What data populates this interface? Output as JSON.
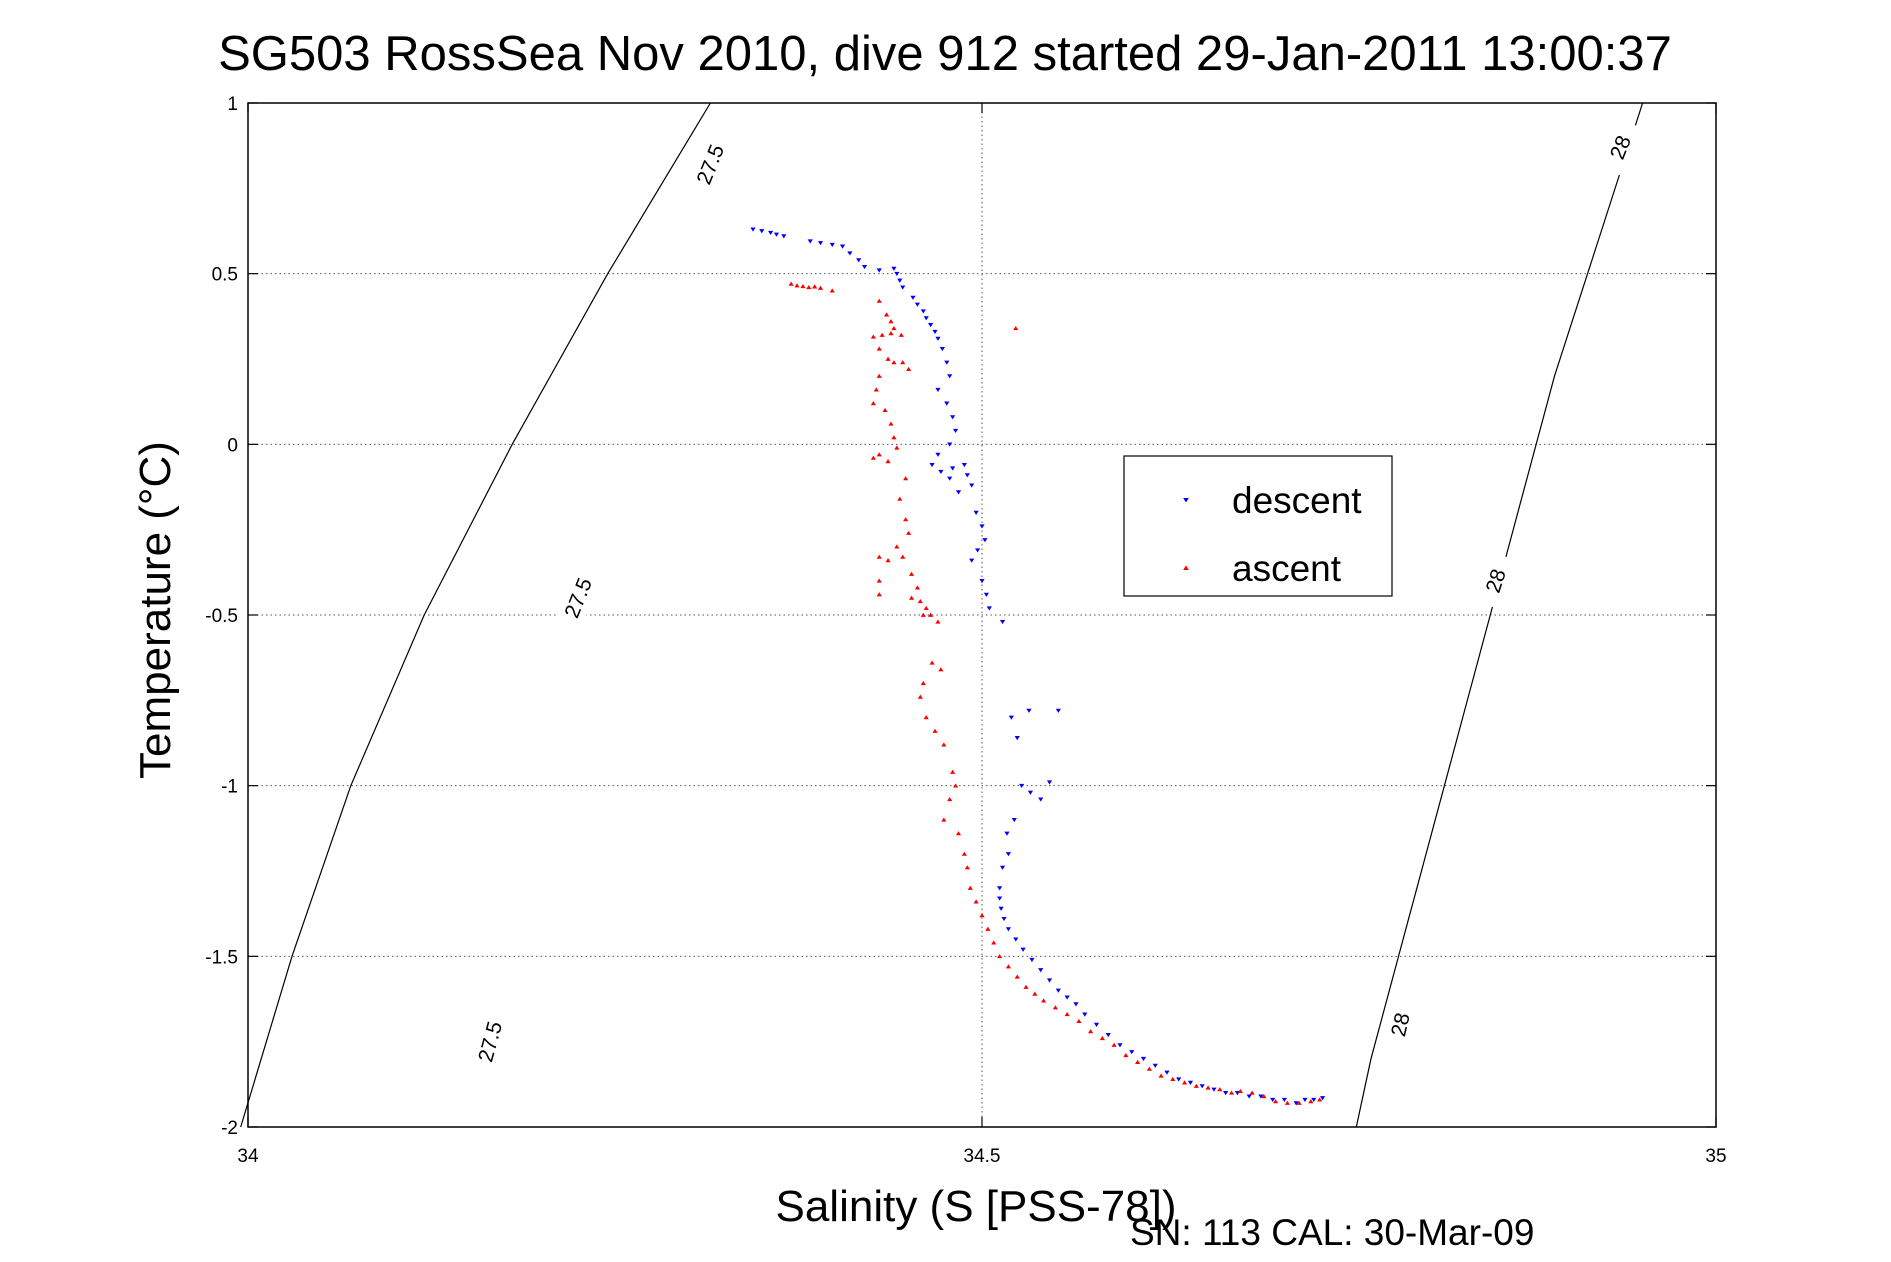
{
  "chart_data": {
    "type": "scatter",
    "title": "SG503 RossSea Nov 2010, dive 912 started 29-Jan-2011 13:00:37",
    "xlabel": "Salinity (S [PSS-78])",
    "ylabel": "Temperature (°C)",
    "footer": "SN: 113  CAL: 30-Mar-09",
    "xlim": [
      34,
      35
    ],
    "ylim": [
      -2,
      1
    ],
    "grid": true,
    "legend_position": "right-center",
    "x_ticks": [
      "34",
      "34.5",
      "35"
    ],
    "y_ticks": [
      "1",
      "0.5",
      "0",
      "-0.5",
      "-1",
      "-1.5",
      "-2"
    ],
    "x_tick_values": [
      34,
      34.5,
      35
    ],
    "y_tick_values": [
      1,
      0.5,
      0,
      -0.5,
      -1,
      -1.5,
      -2
    ],
    "contours": [
      {
        "label": "27.5",
        "points": [
          [
            34.315,
            1
          ],
          [
            34.245,
            0.5
          ],
          [
            34.18,
            0
          ],
          [
            34.12,
            -0.5
          ],
          [
            34.07,
            -1
          ],
          [
            34.03,
            -1.5
          ],
          [
            33.995,
            -2
          ]
        ],
        "label_positions": [
          [
            34.315,
            0.82,
            -68
          ],
          [
            34.225,
            -0.45,
            -68
          ],
          [
            34.165,
            -1.75,
            -75
          ]
        ]
      },
      {
        "label": "28",
        "points": [
          [
            34.95,
            1
          ],
          [
            34.92,
            0.6
          ],
          [
            34.89,
            0.2
          ],
          [
            34.865,
            -0.2
          ],
          [
            34.84,
            -0.6
          ],
          [
            34.815,
            -1
          ],
          [
            34.79,
            -1.4
          ],
          [
            34.765,
            -1.8
          ],
          [
            34.755,
            -2
          ]
        ],
        "label_positions": [
          [
            34.935,
            0.87,
            -68
          ],
          [
            34.85,
            -0.4,
            -72
          ],
          [
            34.785,
            -1.7,
            -77
          ]
        ]
      }
    ],
    "series": [
      {
        "name": "descent",
        "color": "#0000ff",
        "marker": "triangle-down",
        "points": [
          [
            34.344,
            0.63
          ],
          [
            34.35,
            0.625
          ],
          [
            34.356,
            0.62
          ],
          [
            34.36,
            0.615
          ],
          [
            34.365,
            0.61
          ],
          [
            34.383,
            0.595
          ],
          [
            34.39,
            0.59
          ],
          [
            34.398,
            0.585
          ],
          [
            34.405,
            0.58
          ],
          [
            34.41,
            0.56
          ],
          [
            34.416,
            0.54
          ],
          [
            34.42,
            0.52
          ],
          [
            34.43,
            0.51
          ],
          [
            34.44,
            0.515
          ],
          [
            34.442,
            0.5
          ],
          [
            34.444,
            0.48
          ],
          [
            34.446,
            0.46
          ],
          [
            34.453,
            0.43
          ],
          [
            34.456,
            0.41
          ],
          [
            34.46,
            0.39
          ],
          [
            34.462,
            0.37
          ],
          [
            34.465,
            0.35
          ],
          [
            34.468,
            0.33
          ],
          [
            34.47,
            0.31
          ],
          [
            34.473,
            0.28
          ],
          [
            34.476,
            0.24
          ],
          [
            34.478,
            0.2
          ],
          [
            34.47,
            0.16
          ],
          [
            34.476,
            0.12
          ],
          [
            34.48,
            0.08
          ],
          [
            34.482,
            0.04
          ],
          [
            34.478,
            0.0
          ],
          [
            34.47,
            -0.03
          ],
          [
            34.466,
            -0.06
          ],
          [
            34.472,
            -0.08
          ],
          [
            34.48,
            -0.07
          ],
          [
            34.488,
            -0.06
          ],
          [
            34.49,
            -0.09
          ],
          [
            34.493,
            -0.12
          ],
          [
            34.484,
            -0.14
          ],
          [
            34.478,
            -0.1
          ],
          [
            34.496,
            -0.2
          ],
          [
            34.5,
            -0.24
          ],
          [
            34.502,
            -0.28
          ],
          [
            34.497,
            -0.31
          ],
          [
            34.493,
            -0.34
          ],
          [
            34.5,
            -0.4
          ],
          [
            34.503,
            -0.44
          ],
          [
            34.505,
            -0.48
          ],
          [
            34.514,
            -0.52
          ],
          [
            34.52,
            -0.8
          ],
          [
            34.524,
            -0.86
          ],
          [
            34.532,
            -0.78
          ],
          [
            34.552,
            -0.78
          ],
          [
            34.527,
            -1.0
          ],
          [
            34.533,
            -1.02
          ],
          [
            34.54,
            -1.04
          ],
          [
            34.546,
            -0.99
          ],
          [
            34.522,
            -1.1
          ],
          [
            34.517,
            -1.14
          ],
          [
            34.518,
            -1.2
          ],
          [
            34.514,
            -1.24
          ],
          [
            34.512,
            -1.3
          ],
          [
            34.512,
            -1.33
          ],
          [
            34.513,
            -1.36
          ],
          [
            34.515,
            -1.39
          ],
          [
            34.518,
            -1.42
          ],
          [
            34.523,
            -1.45
          ],
          [
            34.528,
            -1.48
          ],
          [
            34.534,
            -1.51
          ],
          [
            34.54,
            -1.54
          ],
          [
            34.546,
            -1.57
          ],
          [
            34.552,
            -1.6
          ],
          [
            34.558,
            -1.62
          ],
          [
            34.564,
            -1.64
          ],
          [
            34.57,
            -1.67
          ],
          [
            34.578,
            -1.7
          ],
          [
            34.586,
            -1.73
          ],
          [
            34.594,
            -1.76
          ],
          [
            34.602,
            -1.78
          ],
          [
            34.61,
            -1.8
          ],
          [
            34.618,
            -1.82
          ],
          [
            34.626,
            -1.84
          ],
          [
            34.634,
            -1.86
          ],
          [
            34.642,
            -1.87
          ],
          [
            34.65,
            -1.88
          ],
          [
            34.658,
            -1.89
          ],
          [
            34.666,
            -1.9
          ],
          [
            34.674,
            -1.9
          ],
          [
            34.682,
            -1.91
          ],
          [
            34.69,
            -1.91
          ],
          [
            34.698,
            -1.92
          ],
          [
            34.706,
            -1.92
          ],
          [
            34.714,
            -1.93
          ],
          [
            34.72,
            -1.92
          ],
          [
            34.726,
            -1.92
          ],
          [
            34.732,
            -1.915
          ]
        ]
      },
      {
        "name": "ascent",
        "color": "#ff0000",
        "marker": "triangle-up",
        "points": [
          [
            34.37,
            0.47
          ],
          [
            34.374,
            0.465
          ],
          [
            34.378,
            0.463
          ],
          [
            34.382,
            0.46
          ],
          [
            34.386,
            0.462
          ],
          [
            34.39,
            0.458
          ],
          [
            34.398,
            0.45
          ],
          [
            34.43,
            0.42
          ],
          [
            34.435,
            0.38
          ],
          [
            34.438,
            0.36
          ],
          [
            34.44,
            0.34
          ],
          [
            34.445,
            0.32
          ],
          [
            34.438,
            0.325
          ],
          [
            34.432,
            0.32
          ],
          [
            34.426,
            0.315
          ],
          [
            34.43,
            0.28
          ],
          [
            34.436,
            0.25
          ],
          [
            34.44,
            0.24
          ],
          [
            34.446,
            0.24
          ],
          [
            34.45,
            0.22
          ],
          [
            34.43,
            0.2
          ],
          [
            34.428,
            0.16
          ],
          [
            34.426,
            0.12
          ],
          [
            34.434,
            0.1
          ],
          [
            34.438,
            0.06
          ],
          [
            34.44,
            0.02
          ],
          [
            34.442,
            -0.01
          ],
          [
            34.43,
            -0.03
          ],
          [
            34.426,
            -0.04
          ],
          [
            34.436,
            -0.05
          ],
          [
            34.448,
            -0.1
          ],
          [
            34.444,
            -0.16
          ],
          [
            34.448,
            -0.22
          ],
          [
            34.45,
            -0.26
          ],
          [
            34.442,
            -0.3
          ],
          [
            34.446,
            -0.33
          ],
          [
            34.436,
            -0.34
          ],
          [
            34.43,
            -0.33
          ],
          [
            34.43,
            -0.4
          ],
          [
            34.43,
            -0.44
          ],
          [
            34.452,
            -0.38
          ],
          [
            34.456,
            -0.42
          ],
          [
            34.452,
            -0.45
          ],
          [
            34.458,
            -0.46
          ],
          [
            34.462,
            -0.48
          ],
          [
            34.465,
            -0.5
          ],
          [
            34.47,
            -0.52
          ],
          [
            34.46,
            -0.5
          ],
          [
            34.466,
            -0.64
          ],
          [
            34.472,
            -0.66
          ],
          [
            34.46,
            -0.7
          ],
          [
            34.458,
            -0.74
          ],
          [
            34.462,
            -0.8
          ],
          [
            34.468,
            -0.84
          ],
          [
            34.474,
            -0.88
          ],
          [
            34.48,
            -0.96
          ],
          [
            34.482,
            -1.0
          ],
          [
            34.478,
            -1.04
          ],
          [
            34.474,
            -1.1
          ],
          [
            34.484,
            -1.14
          ],
          [
            34.488,
            -1.2
          ],
          [
            34.49,
            -1.24
          ],
          [
            34.492,
            -1.3
          ],
          [
            34.496,
            -1.34
          ],
          [
            34.5,
            -1.38
          ],
          [
            34.504,
            -1.42
          ],
          [
            34.508,
            -1.46
          ],
          [
            34.512,
            -1.5
          ],
          [
            34.518,
            -1.53
          ],
          [
            34.524,
            -1.56
          ],
          [
            34.53,
            -1.59
          ],
          [
            34.536,
            -1.61
          ],
          [
            34.542,
            -1.63
          ],
          [
            34.55,
            -1.65
          ],
          [
            34.558,
            -1.67
          ],
          [
            34.566,
            -1.69
          ],
          [
            34.574,
            -1.72
          ],
          [
            34.582,
            -1.74
          ],
          [
            34.59,
            -1.76
          ],
          [
            34.598,
            -1.79
          ],
          [
            34.606,
            -1.81
          ],
          [
            34.614,
            -1.83
          ],
          [
            34.622,
            -1.85
          ],
          [
            34.63,
            -1.86
          ],
          [
            34.638,
            -1.87
          ],
          [
            34.646,
            -1.88
          ],
          [
            34.654,
            -1.885
          ],
          [
            34.662,
            -1.89
          ],
          [
            34.67,
            -1.9
          ],
          [
            34.676,
            -1.895
          ],
          [
            34.684,
            -1.9
          ],
          [
            34.692,
            -1.91
          ],
          [
            34.7,
            -1.925
          ],
          [
            34.708,
            -1.93
          ],
          [
            34.716,
            -1.93
          ],
          [
            34.724,
            -1.925
          ],
          [
            34.73,
            -1.92
          ],
          [
            34.523,
            0.34
          ]
        ]
      }
    ]
  }
}
